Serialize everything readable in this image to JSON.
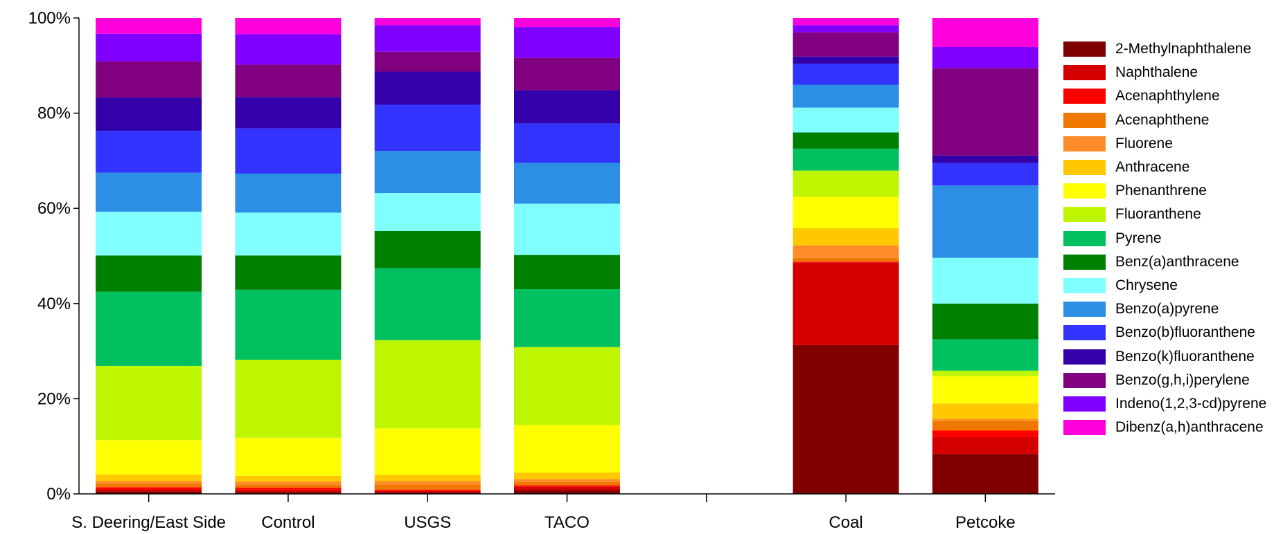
{
  "chart_data": {
    "type": "bar",
    "stacked": "percent",
    "title": "",
    "xlabel": "",
    "ylabel": "",
    "ylim": [
      0,
      100
    ],
    "yticks": [
      "0%",
      "20%",
      "40%",
      "60%",
      "80%",
      "100%"
    ],
    "grid": false,
    "legend_position": "right",
    "categories": [
      "S. Deering/East Side",
      "Control",
      "USGS",
      "TACO",
      "",
      "Coal",
      "Petcoke"
    ],
    "series": [
      {
        "name": "2-Methylnaphthalene",
        "color": "#800000",
        "values": [
          0.5,
          0.4,
          0.3,
          0.8,
          null,
          31.2,
          8.4
        ]
      },
      {
        "name": "Naphthalene",
        "color": "#d40000",
        "values": [
          0.5,
          0.5,
          0.3,
          0.7,
          null,
          17.3,
          3.6
        ]
      },
      {
        "name": "Acenaphthylene",
        "color": "#ff0000",
        "values": [
          0.4,
          0.4,
          0.3,
          0.3,
          null,
          0.2,
          1.3
        ]
      },
      {
        "name": "Acenaphthene",
        "color": "#f07800",
        "values": [
          0.8,
          0.7,
          1.1,
          0.7,
          null,
          0.8,
          2.0
        ]
      },
      {
        "name": "Fluorene",
        "color": "#ff8c28",
        "values": [
          0.5,
          0.6,
          0.7,
          0.6,
          null,
          2.6,
          0.4
        ]
      },
      {
        "name": "Anthracene",
        "color": "#ffc800",
        "values": [
          1.4,
          1.2,
          1.3,
          1.4,
          null,
          3.6,
          3.3
        ]
      },
      {
        "name": "Phenanthrene",
        "color": "#ffff00",
        "values": [
          7.2,
          8.0,
          9.8,
          10.0,
          null,
          6.6,
          5.7
        ]
      },
      {
        "name": "Fluoranthene",
        "color": "#bef500",
        "values": [
          15.6,
          16.4,
          18.6,
          16.4,
          null,
          5.5,
          1.2
        ]
      },
      {
        "name": "Pyrene",
        "color": "#00c060",
        "values": [
          15.6,
          14.7,
          15.2,
          12.2,
          null,
          4.6,
          6.6
        ]
      },
      {
        "name": "Benz(a)anthracene",
        "color": "#008000",
        "values": [
          7.6,
          7.2,
          7.8,
          7.2,
          null,
          3.4,
          7.5
        ]
      },
      {
        "name": "Chrysene",
        "color": "#80ffff",
        "values": [
          9.2,
          9.0,
          8.0,
          10.8,
          null,
          5.2,
          9.6
        ]
      },
      {
        "name": "Benzo(a)pyrene",
        "color": "#2d8ee6",
        "values": [
          8.2,
          8.2,
          8.9,
          8.6,
          null,
          4.8,
          15.2
        ]
      },
      {
        "name": "Benzo(b)fluoranthene",
        "color": "#3333ff",
        "values": [
          8.8,
          9.5,
          9.7,
          8.3,
          null,
          4.4,
          4.7
        ]
      },
      {
        "name": "Benzo(k)fluoranthene",
        "color": "#3300aa",
        "values": [
          7.0,
          6.6,
          7.0,
          7.0,
          null,
          1.5,
          1.6
        ]
      },
      {
        "name": "Benzo(g,h,i)perylene",
        "color": "#800080",
        "values": [
          7.6,
          6.8,
          4.2,
          6.8,
          null,
          5.1,
          18.4
        ]
      },
      {
        "name": "Indeno(1,2,3-cd)pyrene",
        "color": "#8000ff",
        "values": [
          5.8,
          6.4,
          5.6,
          6.5,
          null,
          1.5,
          4.4
        ]
      },
      {
        "name": "Dibenz(a,h)anthracene",
        "color": "#ff00dd",
        "values": [
          3.3,
          3.4,
          1.5,
          1.9,
          null,
          1.5,
          6.1
        ]
      }
    ]
  }
}
